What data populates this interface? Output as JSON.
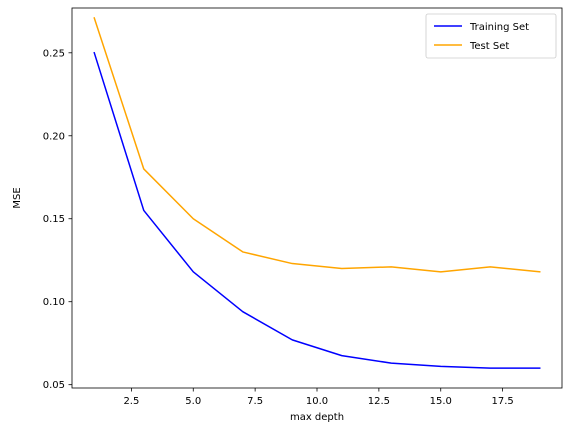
{
  "chart_data": {
    "type": "line",
    "title": "",
    "xlabel": "max depth",
    "ylabel": "MSE",
    "xlim": [
      0.1,
      19.9
    ],
    "ylim": [
      0.048,
      0.277
    ],
    "xticks": [
      2.5,
      5.0,
      7.5,
      10.0,
      12.5,
      15.0,
      17.5
    ],
    "xtick_labels": [
      "2.5",
      "5.0",
      "7.5",
      "10.0",
      "12.5",
      "15.0",
      "17.5"
    ],
    "yticks": [
      0.05,
      0.1,
      0.15,
      0.2,
      0.25
    ],
    "ytick_labels": [
      "0.05",
      "0.10",
      "0.15",
      "0.20",
      "0.25"
    ],
    "grid": false,
    "legend_position": "top-right",
    "x": [
      1,
      3,
      5,
      7,
      9,
      11,
      13,
      15,
      17,
      19
    ],
    "series": [
      {
        "name": "Training Set",
        "color": "#0000ff",
        "values": [
          0.25,
          0.155,
          0.118,
          0.094,
          0.077,
          0.0675,
          0.063,
          0.061,
          0.06,
          0.06
        ]
      },
      {
        "name": "Test Set",
        "color": "#ffa500",
        "values": [
          0.271,
          0.18,
          0.15,
          0.13,
          0.123,
          0.12,
          0.121,
          0.118,
          0.121,
          0.118
        ]
      }
    ]
  }
}
